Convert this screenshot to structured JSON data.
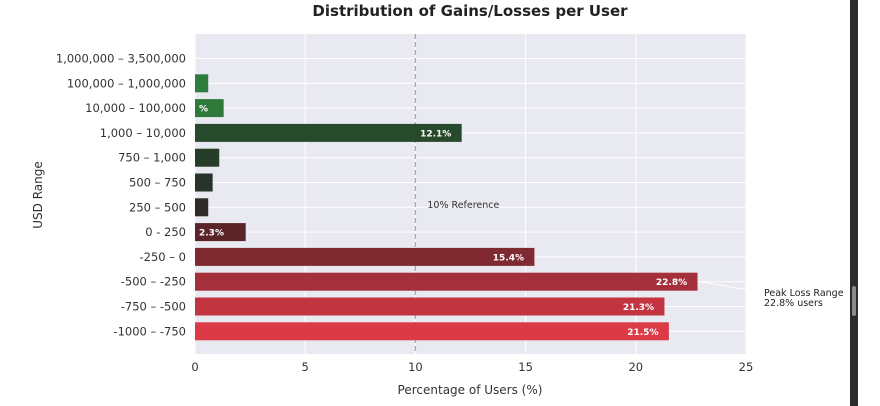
{
  "chart_data": {
    "type": "bar",
    "orientation": "horizontal",
    "title": "Distribution of Gains/Losses per User",
    "xlabel": "Percentage of Users (%)",
    "ylabel": "USD Range",
    "xlim": [
      0,
      25
    ],
    "xticks": [
      "0",
      "5",
      "10",
      "15",
      "20",
      "25"
    ],
    "grid": true,
    "categories": [
      "1,000,000 – 3,500,000",
      "100,000 – 1,000,000",
      "10,000 – 100,000",
      "1,000 – 10,000",
      "750 – 1,000",
      "500 – 750",
      "250 – 500",
      "0 - 250",
      "-250 – 0",
      "-500 – -250",
      "-750 – -500",
      "-1000 – -750"
    ],
    "values": [
      0,
      0.6,
      1.3,
      12.1,
      1.1,
      0.8,
      0.6,
      2.3,
      15.4,
      22.8,
      21.3,
      21.5
    ],
    "data_labels": [
      "",
      "",
      "%",
      "12.1%",
      "",
      "",
      "",
      "2.3%",
      "15.4%",
      "22.8%",
      "21.3%",
      "21.5%"
    ],
    "bar_colors": [
      "#2e7d3e",
      "#2e7d3e",
      "#2f7a3a",
      "#284a2c",
      "#263d29",
      "#26342a",
      "#2e2a26",
      "#5a2428",
      "#7e2a30",
      "#a3303a",
      "#c23540",
      "#dc3a46"
    ],
    "reference_line": {
      "x": 10,
      "label": "10% Reference"
    },
    "annotation": {
      "text_line1": "Peak Loss Range",
      "text_line2": "22.8% users",
      "category_index": 9
    }
  }
}
